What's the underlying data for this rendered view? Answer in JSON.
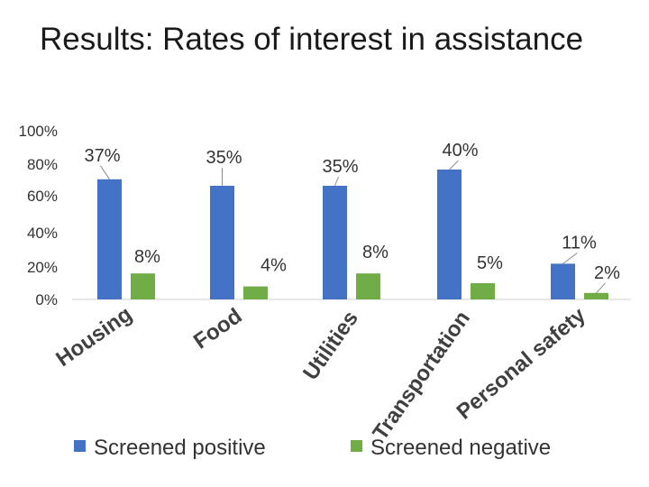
{
  "slide": {
    "title": "Results: Rates of interest in assistance"
  },
  "chart_data": {
    "type": "bar",
    "categories": [
      "Housing",
      "Food",
      "Utilities",
      "Transportation",
      "Personal safety"
    ],
    "series": [
      {
        "name": "Screened positive",
        "values": [
          37,
          35,
          35,
          40,
          11
        ],
        "labels": [
          "37%",
          "35%",
          "35%",
          "40%",
          "11%"
        ]
      },
      {
        "name": "Screened negative",
        "values": [
          8,
          4,
          8,
          5,
          2
        ],
        "labels": [
          "8%",
          "4%",
          "8%",
          "5%",
          "2%"
        ]
      }
    ],
    "y_ticks": [
      "0%",
      "20%",
      "40%",
      "60%",
      "80%",
      "100%"
    ],
    "ylim": [
      0,
      100
    ],
    "grid": false,
    "legend": "bottom",
    "colors": {
      "Screened positive": "#4472C4",
      "Screened negative": "#70AD47"
    }
  }
}
